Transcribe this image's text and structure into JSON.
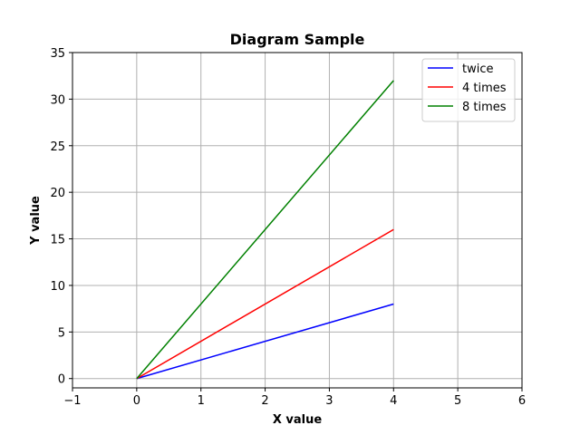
{
  "chart_data": {
    "type": "line",
    "title": "Diagram Sample",
    "xlabel": "X value",
    "ylabel": "Y value",
    "xlim": [
      -1,
      6
    ],
    "ylim": [
      -1,
      35
    ],
    "xticks": [
      -1,
      0,
      1,
      2,
      3,
      4,
      5,
      6
    ],
    "yticks": [
      0,
      5,
      10,
      15,
      20,
      25,
      30,
      35
    ],
    "xtick_labels": [
      "−1",
      "0",
      "1",
      "2",
      "3",
      "4",
      "5",
      "6"
    ],
    "ytick_labels": [
      "0",
      "5",
      "10",
      "15",
      "20",
      "25",
      "30",
      "35"
    ],
    "grid": true,
    "legend_position": "top-right",
    "series": [
      {
        "name": "twice",
        "color": "#0000ff",
        "x": [
          0,
          4
        ],
        "y": [
          0,
          8
        ]
      },
      {
        "name": "4 times",
        "color": "#ff0000",
        "x": [
          0,
          4
        ],
        "y": [
          0,
          16
        ]
      },
      {
        "name": "8 times",
        "color": "#008000",
        "x": [
          0,
          4
        ],
        "y": [
          0,
          32
        ]
      }
    ]
  }
}
